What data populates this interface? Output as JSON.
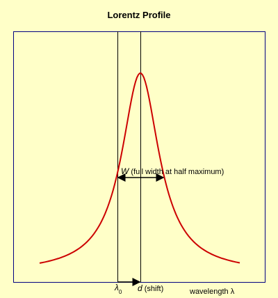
{
  "title": "Lorentz Profile",
  "width_label": {
    "symbol": "W",
    "text": "(full width at half maximum)"
  },
  "center_label": {
    "symbol": "λ",
    "subscript": "0"
  },
  "shift_label": {
    "symbol": "d",
    "text": "(shift)"
  },
  "axis_label": "wavelength λ"
}
